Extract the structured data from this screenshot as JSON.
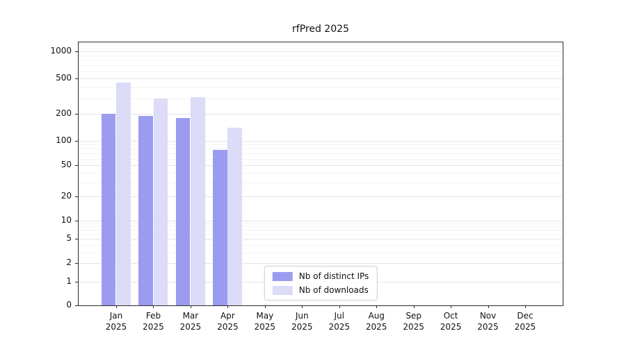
{
  "title": "rfPred 2025",
  "chart_data": {
    "type": "bar",
    "title": "rfPred 2025",
    "categories": [
      "Jan",
      "Feb",
      "Mar",
      "Apr",
      "May",
      "Jun",
      "Jul",
      "Aug",
      "Sep",
      "Oct",
      "Nov",
      "Dec"
    ],
    "year": "2025",
    "series": [
      {
        "name": "Nb of distinct IPs",
        "color": "#9b9bf0",
        "values": [
          200,
          190,
          180,
          78,
          0,
          0,
          0,
          0,
          0,
          0,
          0,
          0
        ]
      },
      {
        "name": "Nb of downloads",
        "color": "#dcdcf8",
        "values": [
          450,
          300,
          310,
          140,
          0,
          0,
          0,
          0,
          0,
          0,
          0,
          0
        ]
      }
    ],
    "yticks": [
      0,
      1,
      2,
      5,
      10,
      20,
      50,
      100,
      200,
      500,
      1000
    ],
    "yscale": "symlog",
    "ylim": [
      0,
      1200
    ],
    "grid": true,
    "legend_position": "lower center",
    "legend_labels": [
      "Nb of distinct IPs",
      "Nb of downloads"
    ]
  }
}
